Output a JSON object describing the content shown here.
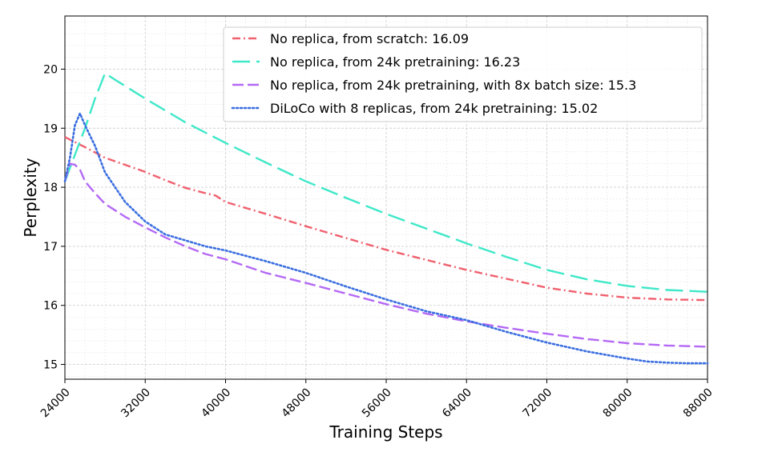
{
  "chart_data": {
    "type": "line",
    "title": "",
    "xlabel": "Training Steps",
    "ylabel": "Perplexity",
    "xlim": [
      24000,
      88000
    ],
    "ylim": [
      14.75,
      20.9
    ],
    "xticks": [
      24000,
      32000,
      40000,
      48000,
      56000,
      64000,
      72000,
      80000,
      88000
    ],
    "yticks": [
      15,
      16,
      17,
      18,
      19,
      20
    ],
    "xtick_labels": [
      "24000",
      "32000",
      "40000",
      "48000",
      "56000",
      "64000",
      "72000",
      "80000",
      "88000"
    ],
    "ytick_labels": [
      "15",
      "16",
      "17",
      "18",
      "19",
      "20"
    ],
    "grid": true,
    "legend_position": "top-right",
    "series": [
      {
        "name": "No replica, from scratch: 16.09",
        "color": "#f0606e",
        "style": "dashdot",
        "x": [
          24000,
          26000,
          28000,
          30000,
          32000,
          34000,
          36000,
          38000,
          39000,
          40000,
          44000,
          48000,
          52000,
          56000,
          60000,
          64000,
          68000,
          72000,
          76000,
          80000,
          84000,
          88000
        ],
        "y": [
          18.85,
          18.68,
          18.5,
          18.38,
          18.26,
          18.12,
          17.99,
          17.9,
          17.86,
          17.75,
          17.55,
          17.34,
          17.14,
          16.94,
          16.77,
          16.6,
          16.45,
          16.3,
          16.2,
          16.13,
          16.1,
          16.09
        ]
      },
      {
        "name": "No replica, from 24k pretraining: 16.23",
        "color": "#3ee8c8",
        "style": "dashed",
        "x": [
          24000,
          25000,
          26000,
          27000,
          28000,
          29000,
          32000,
          36000,
          40000,
          44000,
          48000,
          52000,
          56000,
          60000,
          64000,
          68000,
          72000,
          76000,
          80000,
          84000,
          88000
        ],
        "y": [
          18.1,
          18.55,
          19.0,
          19.5,
          19.93,
          19.82,
          19.5,
          19.1,
          18.75,
          18.42,
          18.1,
          17.82,
          17.55,
          17.3,
          17.05,
          16.82,
          16.6,
          16.44,
          16.33,
          16.26,
          16.23
        ]
      },
      {
        "name": "No replica, from 24k pretraining, with 8x batch size: 15.3",
        "color": "#b469f5",
        "style": "dashed",
        "x": [
          24000,
          24500,
          25000,
          25500,
          26000,
          27000,
          28000,
          30000,
          32000,
          34000,
          36000,
          38000,
          40000,
          44000,
          48000,
          52000,
          56000,
          60000,
          64000,
          68000,
          72000,
          76000,
          80000,
          84000,
          88000
        ],
        "y": [
          18.1,
          18.4,
          18.38,
          18.3,
          18.1,
          17.9,
          17.72,
          17.5,
          17.32,
          17.15,
          17.0,
          16.87,
          16.78,
          16.55,
          16.38,
          16.2,
          16.02,
          15.86,
          15.73,
          15.62,
          15.52,
          15.43,
          15.36,
          15.32,
          15.3
        ]
      },
      {
        "name": "DiLoCo with 8 replicas, from 24k pretraining: 15.02",
        "color": "#3a6ee0",
        "style": "dotted",
        "x": [
          24000,
          24500,
          25000,
          25500,
          26000,
          27000,
          28000,
          30000,
          32000,
          34000,
          36000,
          38000,
          40000,
          44000,
          48000,
          52000,
          56000,
          60000,
          64000,
          68000,
          72000,
          76000,
          80000,
          82000,
          84000,
          86000,
          88000
        ],
        "y": [
          18.1,
          18.5,
          19.05,
          19.25,
          19.05,
          18.7,
          18.25,
          17.75,
          17.42,
          17.2,
          17.1,
          17.0,
          16.93,
          16.75,
          16.55,
          16.32,
          16.1,
          15.9,
          15.75,
          15.55,
          15.37,
          15.22,
          15.1,
          15.05,
          15.03,
          15.02,
          15.02
        ]
      }
    ]
  }
}
